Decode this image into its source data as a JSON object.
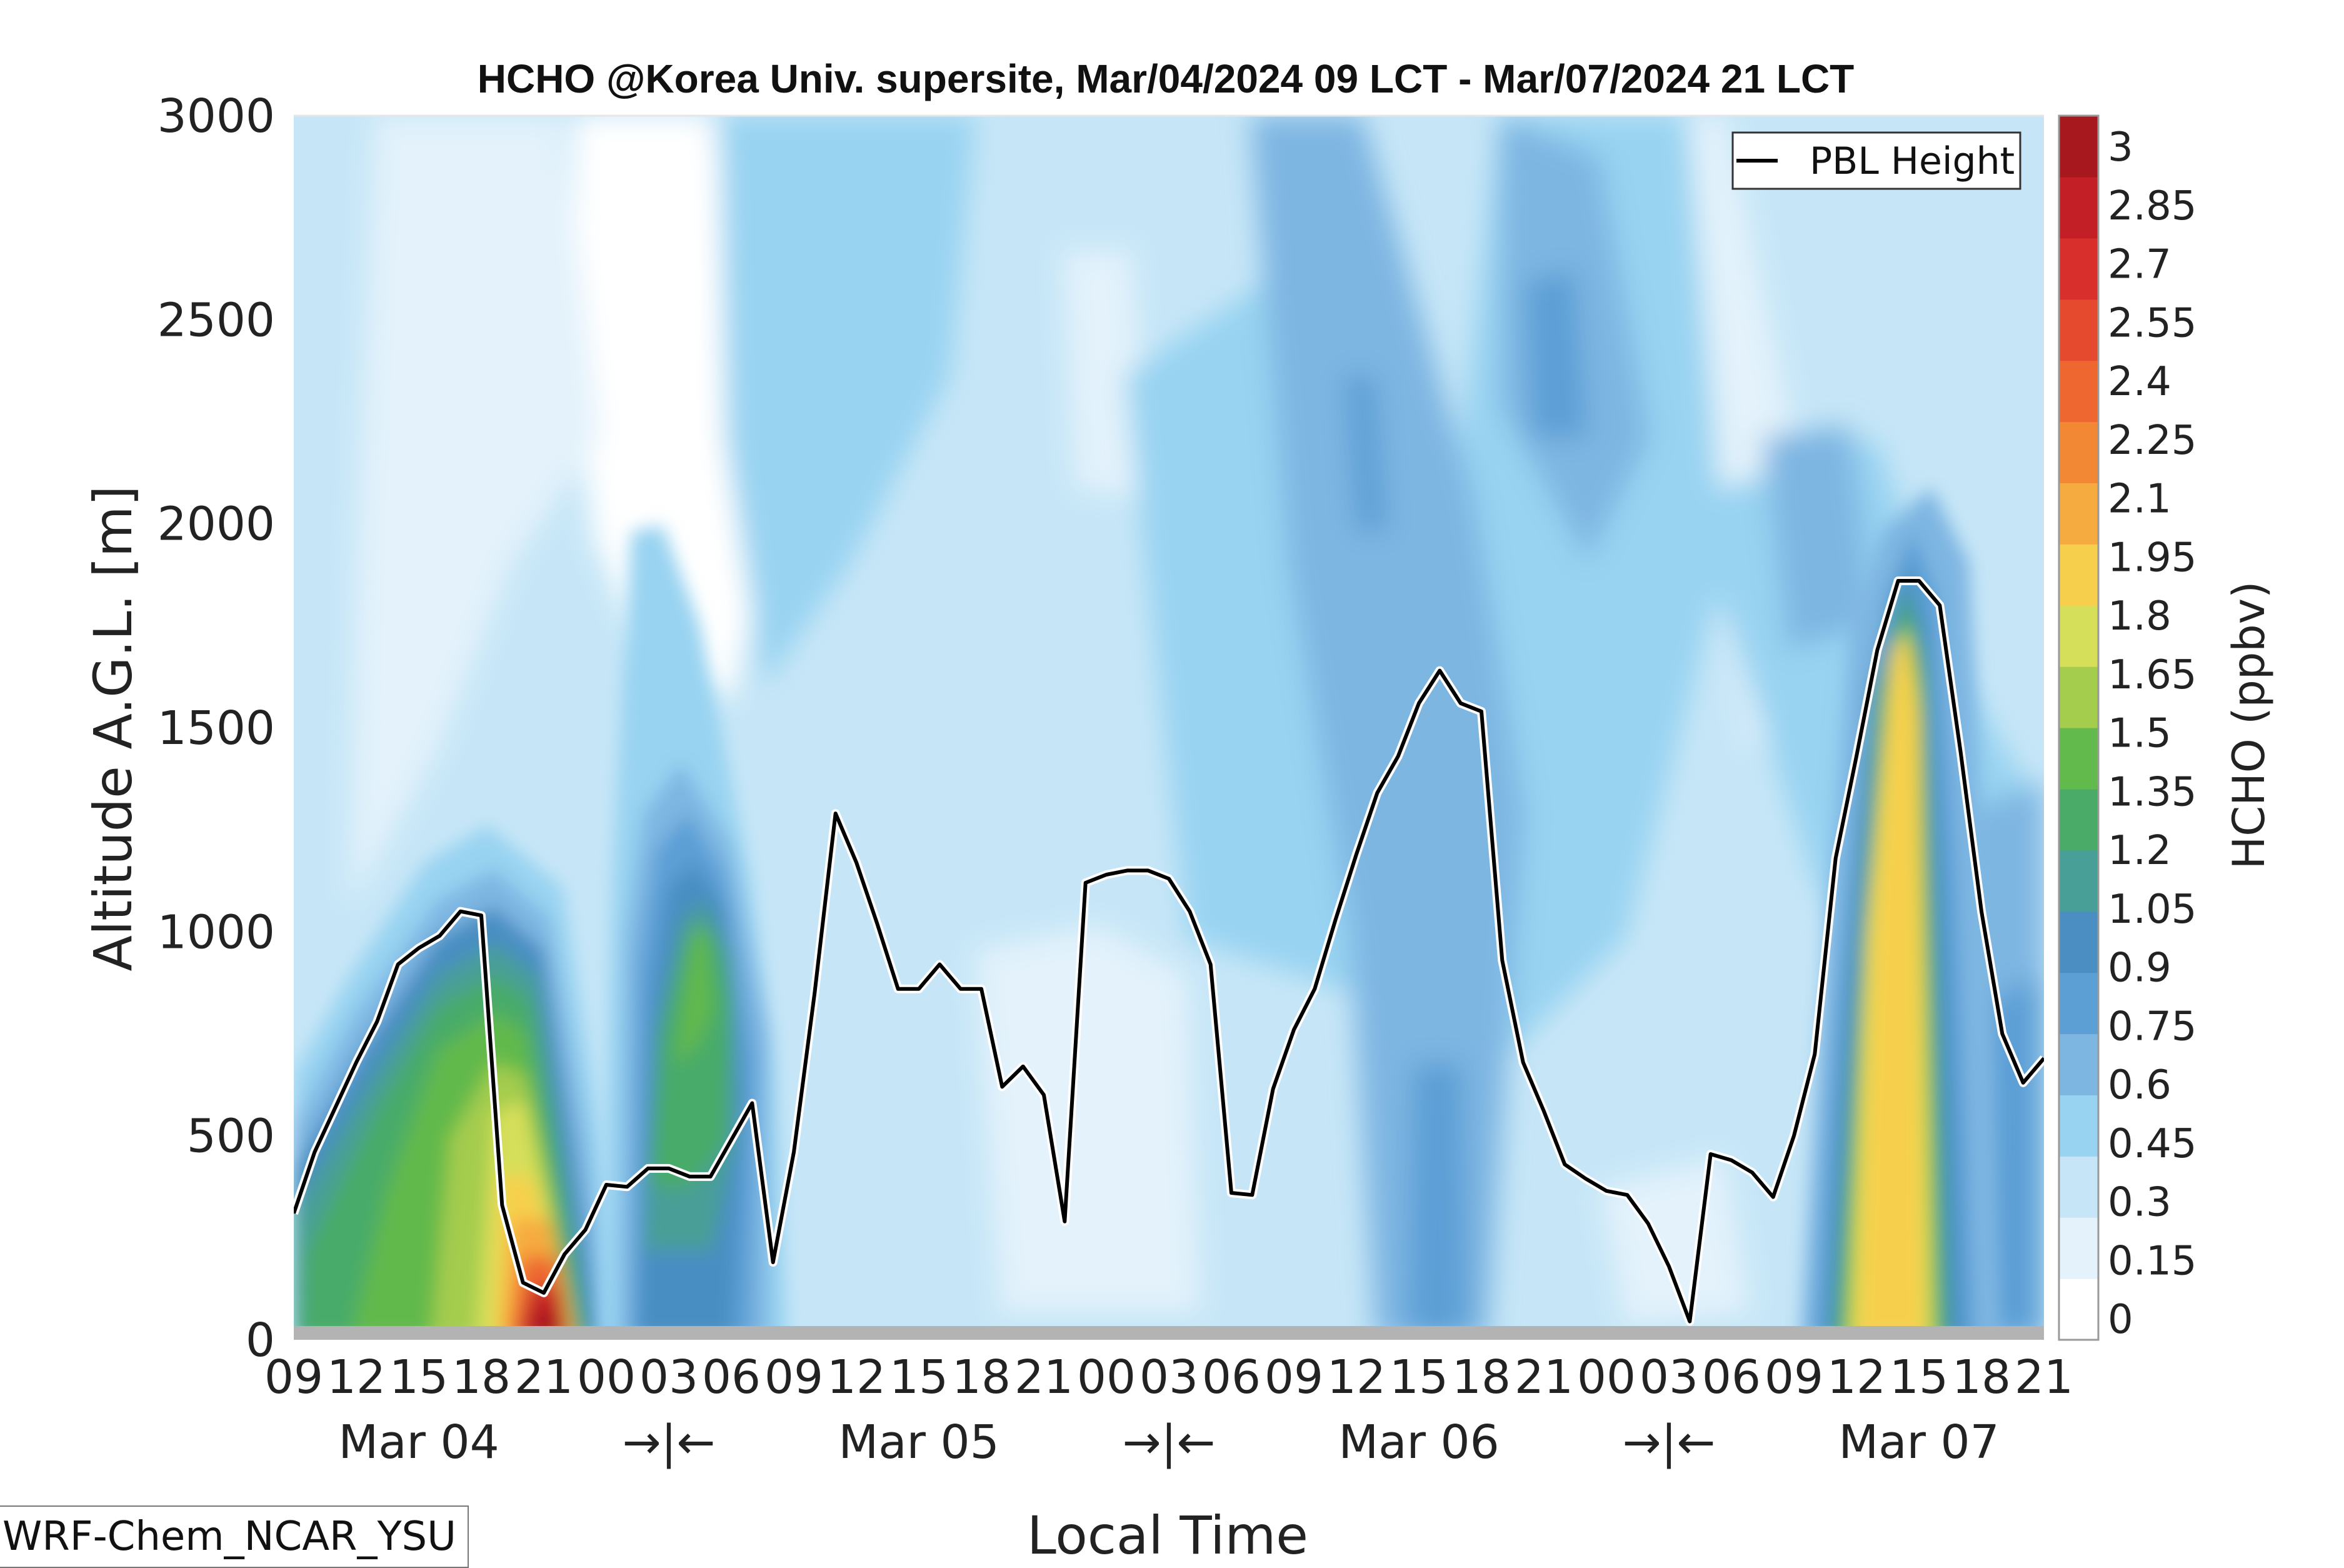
{
  "chart_data": {
    "type": "heatmap",
    "title": "HCHO @Korea Univ. supersite, Mar/04/2024 09 LCT - Mar/07/2024 21 LCT",
    "xlabel": "Local Time",
    "ylabel": "Altitude A.G.L. [m]",
    "colorbar_label": "HCHO (ppbv)",
    "ylim": [
      0,
      3000
    ],
    "y_ticks": [
      "0",
      "500",
      "1000",
      "1500",
      "2000",
      "2500",
      "3000"
    ],
    "x_hour_ticks": [
      "09",
      "12",
      "15",
      "18",
      "21",
      "00",
      "03",
      "06",
      "09",
      "12",
      "15",
      "18",
      "21",
      "00",
      "03",
      "06",
      "09",
      "12",
      "15",
      "18",
      "21",
      "00",
      "03",
      "06",
      "09",
      "12",
      "15",
      "18",
      "21"
    ],
    "x_day_labels": [
      "Mar 04",
      "→|←",
      "Mar 05",
      "→|←",
      "Mar 06",
      "→|←",
      "Mar 07"
    ],
    "x_range_hours": [
      0,
      84
    ],
    "colorbar": {
      "ticks": [
        "0",
        "0.15",
        "0.3",
        "0.45",
        "0.6",
        "0.75",
        "0.9",
        "1.05",
        "1.2",
        "1.35",
        "1.5",
        "1.65",
        "1.8",
        "1.95",
        "2.1",
        "2.25",
        "2.4",
        "2.55",
        "2.7",
        "2.85",
        "3"
      ],
      "colors": [
        "#ffffff",
        "#e3f2fb",
        "#c6e6f7",
        "#98d3f1",
        "#7eb6e2",
        "#5b9fd5",
        "#4a8ec2",
        "#489f97",
        "#4aab69",
        "#62b94c",
        "#a4cc4d",
        "#d6df5a",
        "#f6d04d",
        "#f6ab41",
        "#f28834",
        "#ee6730",
        "#e54a2e",
        "#d92f2c",
        "#c22026",
        "#a6171e"
      ]
    },
    "legend": {
      "entries": [
        "PBL Height"
      ],
      "placement": "top-right"
    },
    "pbl_height": {
      "name": "PBL Height",
      "hours": [
        0,
        1,
        2,
        3,
        4,
        5,
        6,
        7,
        8,
        9,
        10,
        11,
        12,
        13,
        14,
        15,
        16,
        17,
        18,
        19,
        20,
        21,
        22,
        23,
        24,
        25,
        26,
        27,
        28,
        29,
        30,
        31,
        32,
        33,
        34,
        35,
        36,
        37,
        38,
        39,
        40,
        41,
        42,
        43,
        44,
        45,
        46,
        47,
        48,
        49,
        50,
        51,
        52,
        53,
        54,
        55,
        56,
        57,
        58,
        59,
        60,
        61,
        62,
        63,
        64,
        65,
        66,
        67,
        68,
        69,
        70,
        71,
        72,
        73,
        74,
        75,
        76,
        77,
        78,
        79,
        80,
        81,
        82,
        83,
        84
      ],
      "values": [
        310,
        460,
        570,
        680,
        780,
        920,
        960,
        990,
        1050,
        1040,
        330,
        140,
        115,
        210,
        270,
        380,
        375,
        420,
        420,
        400,
        400,
        490,
        580,
        190,
        460,
        850,
        1290,
        1170,
        1020,
        860,
        860,
        920,
        860,
        860,
        620,
        670,
        600,
        290,
        1120,
        1140,
        1150,
        1150,
        1130,
        1050,
        920,
        360,
        355,
        615,
        760,
        860,
        1030,
        1190,
        1340,
        1430,
        1560,
        1640,
        1560,
        1540,
        930,
        680,
        560,
        430,
        395,
        365,
        355,
        285,
        180,
        45,
        455,
        440,
        410,
        350,
        500,
        700,
        1180,
        1430,
        1690,
        1860,
        1860,
        1800,
        1440,
        1050,
        750,
        630,
        690
      ]
    },
    "hcho_peaks": [
      {
        "t": 4,
        "z": 120,
        "value": 1.35
      },
      {
        "t": 7,
        "z": 300,
        "value": 1.55
      },
      {
        "t": 11.5,
        "z": 20,
        "value": 3.0
      },
      {
        "t": 10.5,
        "z": 300,
        "value": 1.75
      },
      {
        "t": 19,
        "z": 850,
        "value": 1.35
      },
      {
        "t": 76.5,
        "z": 900,
        "value": 1.8
      },
      {
        "t": 76.5,
        "z": 150,
        "value": 1.8
      }
    ]
  },
  "model_label": "WRF-Chem_NCAR_YSU"
}
